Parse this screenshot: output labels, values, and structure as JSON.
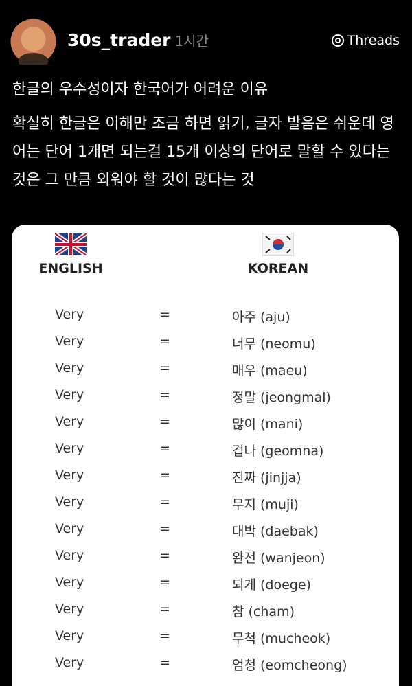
{
  "header": {
    "username": "30s_trader",
    "time": "1시간",
    "brand": "Threads"
  },
  "post": {
    "title": "한글의 우수성이자 한국어가 어려운 이유",
    "body": "확실히 한글은 이해만 조금 하면 읽기, 글자 발음은 쉬운데 영어는 단어 1개면 되는걸 15개 이상의 단어로 말할 수 있다는 것은 그 만큼 외워야 할 것이 많다는 것"
  },
  "table": {
    "headers": [
      "ENGLISH",
      "KOREAN"
    ],
    "rows": [
      [
        "Very",
        "=",
        "아주 (aju)"
      ],
      [
        "Very",
        "=",
        "너무 (neomu)"
      ],
      [
        "Very",
        "=",
        "매우 (maeu)"
      ],
      [
        "Very",
        "=",
        "정말 (jeongmal)"
      ],
      [
        "Very",
        "=",
        "많이 (mani)"
      ],
      [
        "Very",
        "=",
        "겁나 (geomna)"
      ],
      [
        "Very",
        "=",
        "진짜 (jinjja)"
      ],
      [
        "Very",
        "=",
        "무지 (muji)"
      ],
      [
        "Very",
        "=",
        "대박 (daebak)"
      ],
      [
        "Very",
        "=",
        "완전 (wanjeon)"
      ],
      [
        "Very",
        "=",
        "되게 (doege)"
      ],
      [
        "Very",
        "=",
        "참 (cham)"
      ],
      [
        "Very",
        "=",
        "무척 (mucheok)"
      ],
      [
        "Very",
        "=",
        "엄청 (eomcheong)"
      ]
    ]
  }
}
